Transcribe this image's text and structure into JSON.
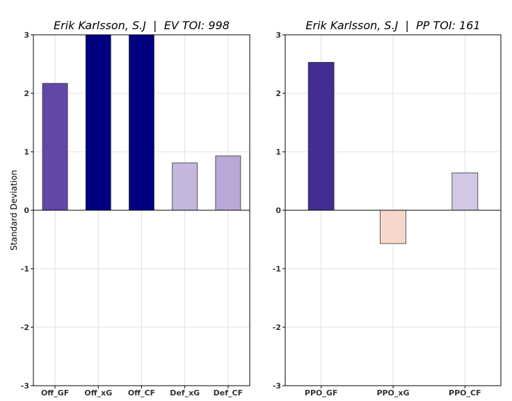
{
  "chart_data": [
    {
      "type": "bar",
      "title": "Erik Karlsson, S.J  |  EV TOI: 998",
      "ylabel": "Standard Deviation",
      "xlabel": "",
      "categories": [
        "Off_GF",
        "Off_xG",
        "Off_CF",
        "Def_xG",
        "Def_CF"
      ],
      "values": [
        2.17,
        3.0,
        3.0,
        0.81,
        0.93
      ],
      "colors": [
        "#6247a8",
        "#000080",
        "#000080",
        "#c3b7dd",
        "#b8a8d8"
      ],
      "ylim": [
        -3,
        3
      ],
      "yticks": [
        -3,
        -2,
        -1,
        0,
        1,
        2,
        3
      ],
      "grid": true
    },
    {
      "type": "bar",
      "title": "Erik Karlsson, S.J  |  PP TOI: 161",
      "ylabel": "",
      "xlabel": "",
      "categories": [
        "PPO_GF",
        "PPO_xG",
        "PPO_CF"
      ],
      "values": [
        2.53,
        -0.57,
        0.64
      ],
      "colors": [
        "#432d92",
        "#f7d7ca",
        "#d2c8e5"
      ],
      "ylim": [
        -3,
        3
      ],
      "yticks": [
        -3,
        -2,
        -1,
        0,
        1,
        2,
        3
      ],
      "grid": true
    }
  ]
}
